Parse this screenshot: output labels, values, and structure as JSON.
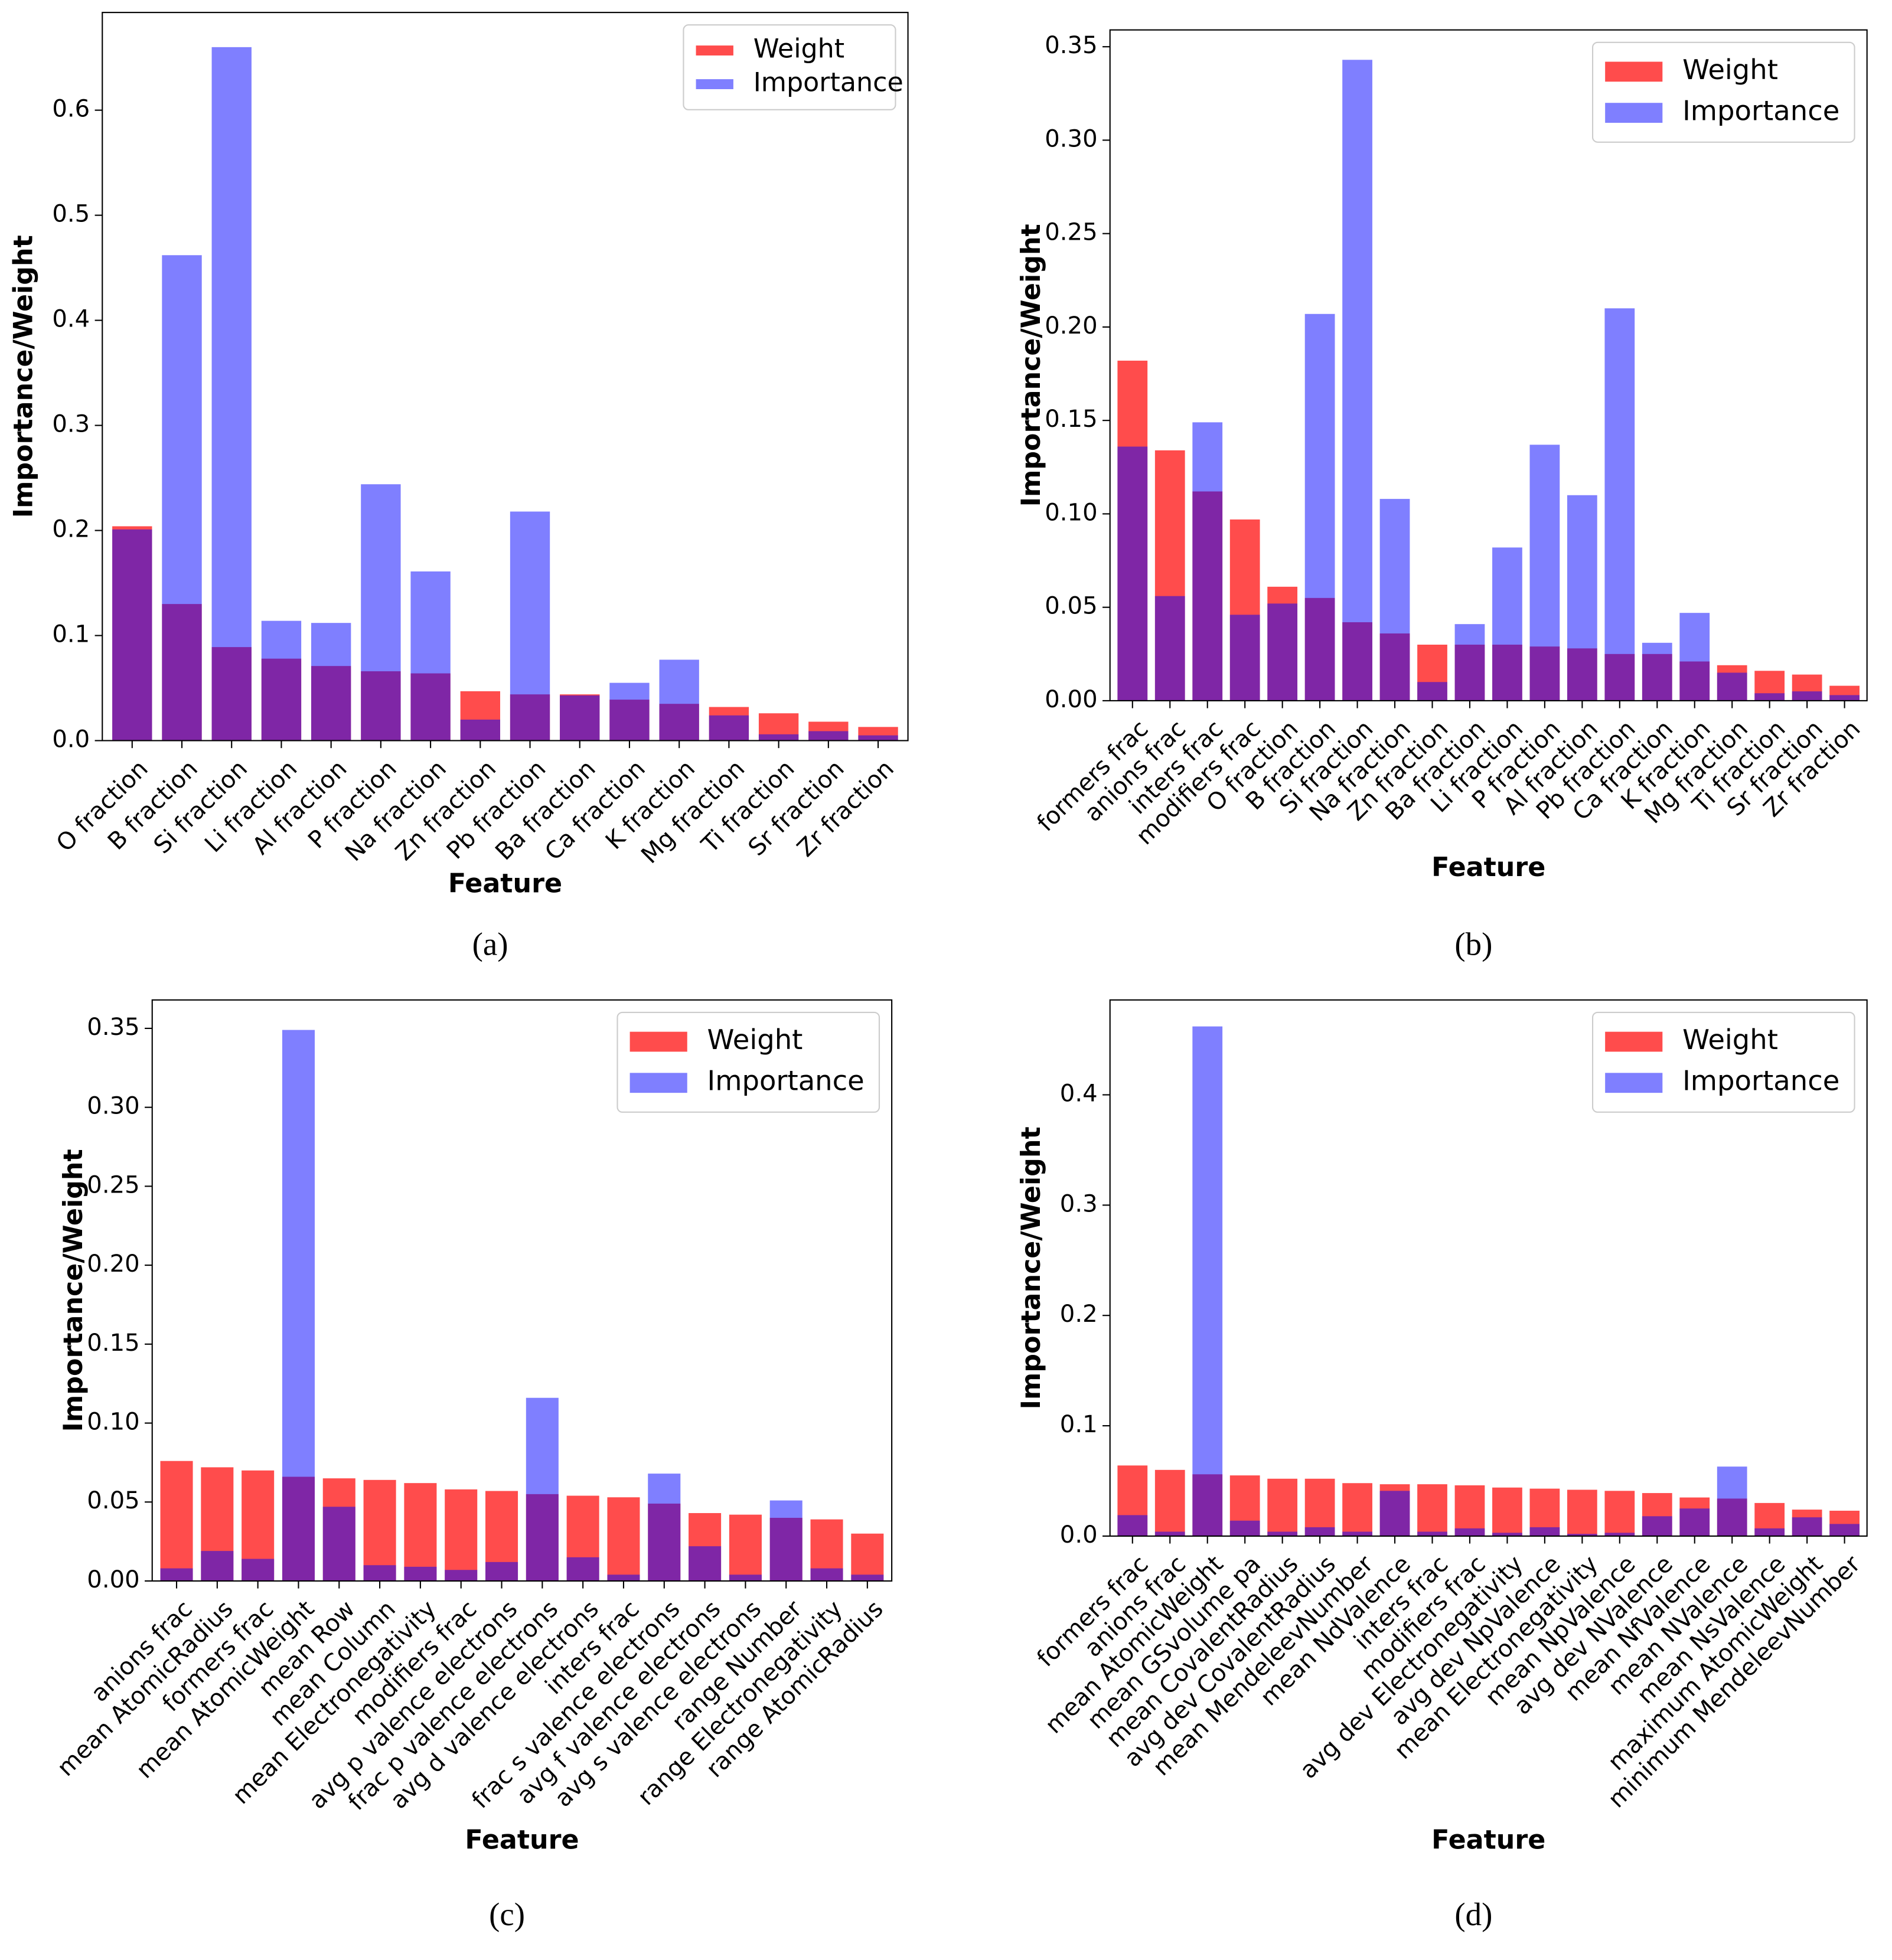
{
  "chart_data": [
    {
      "type": "bar",
      "caption": "(a)",
      "xlabel": "Feature",
      "ylabel": "Importance/Weight",
      "categories": [
        "O fraction",
        "B fraction",
        "Si fraction",
        "Li fraction",
        "Al fraction",
        "P fraction",
        "Na fraction",
        "Zn fraction",
        "Pb fraction",
        "Ba fraction",
        "Ca fraction",
        "K fraction",
        "Mg fraction",
        "Ti fraction",
        "Sr fraction",
        "Zr fraction"
      ],
      "series": [
        {
          "name": "Weight",
          "color": "#ff0000",
          "alpha": 0.7,
          "values": [
            0.204,
            0.13,
            0.089,
            0.078,
            0.071,
            0.066,
            0.064,
            0.047,
            0.044,
            0.044,
            0.039,
            0.035,
            0.032,
            0.026,
            0.018,
            0.013
          ]
        },
        {
          "name": "Importance",
          "color": "#0000ff",
          "alpha": 0.5,
          "values": [
            0.201,
            0.462,
            0.66,
            0.114,
            0.112,
            0.244,
            0.161,
            0.02,
            0.218,
            0.043,
            0.055,
            0.077,
            0.024,
            0.006,
            0.009,
            0.005
          ]
        }
      ],
      "ylim": [
        0,
        0.693
      ],
      "yticks": [
        {
          "value": 0,
          "label": "0.0"
        },
        0.1,
        0.2,
        0.3,
        0.4,
        0.5,
        0.6
      ],
      "legend": "upper right",
      "legend_size": "small"
    },
    {
      "type": "bar",
      "caption": "(b)",
      "xlabel": "Feature",
      "ylabel": "Importance/Weight",
      "categories": [
        "formers frac",
        "anions frac",
        "inters frac",
        "modifiers frac",
        "O fraction",
        "B fraction",
        "Si fraction",
        "Na fraction",
        "Zn fraction",
        "Ba fraction",
        "Li fraction",
        "P fraction",
        "Al fraction",
        "Pb fraction",
        "Ca fraction",
        "K fraction",
        "Mg fraction",
        "Ti fraction",
        "Sr fraction",
        "Zr fraction"
      ],
      "series": [
        {
          "name": "Weight",
          "color": "#ff0000",
          "alpha": 0.7,
          "values": [
            0.182,
            0.134,
            0.112,
            0.097,
            0.061,
            0.055,
            0.042,
            0.036,
            0.03,
            0.03,
            0.03,
            0.029,
            0.028,
            0.025,
            0.025,
            0.021,
            0.019,
            0.016,
            0.014,
            0.008
          ]
        },
        {
          "name": "Importance",
          "color": "#0000ff",
          "alpha": 0.5,
          "values": [
            0.136,
            0.056,
            0.149,
            0.046,
            0.052,
            0.207,
            0.343,
            0.108,
            0.01,
            0.041,
            0.082,
            0.137,
            0.11,
            0.21,
            0.031,
            0.047,
            0.015,
            0.004,
            0.005,
            0.003
          ]
        }
      ],
      "ylim": [
        0,
        0.359
      ],
      "yticks": [
        {
          "value": 0,
          "label": "0.00"
        },
        0.05,
        {
          "value": 0.1,
          "label": "0.10"
        },
        0.15,
        {
          "value": 0.2,
          "label": "0.20"
        },
        0.25,
        {
          "value": 0.3,
          "label": "0.30"
        },
        0.35
      ],
      "legend": "upper right",
      "legend_size": "large"
    },
    {
      "type": "bar",
      "caption": "(c)",
      "xlabel": "Feature",
      "ylabel": "Importance/Weight",
      "categories": [
        "anions frac",
        "mean AtomicRadius",
        "formers frac",
        "mean AtomicWeight",
        "mean Row",
        "mean Column",
        "mean Electronegativity",
        "modifiers frac",
        "avg p valence electrons",
        "frac p valence electrons",
        "avg d valence electrons",
        "inters frac",
        "frac s valence electrons",
        "avg f valence electrons",
        "avg s valence electrons",
        "range Number",
        "range Electronegativity",
        "range AtomicRadius"
      ],
      "series": [
        {
          "name": "Weight",
          "color": "#ff0000",
          "alpha": 0.7,
          "values": [
            0.076,
            0.072,
            0.07,
            0.066,
            0.065,
            0.064,
            0.062,
            0.058,
            0.057,
            0.055,
            0.054,
            0.053,
            0.049,
            0.043,
            0.042,
            0.04,
            0.039,
            0.03
          ]
        },
        {
          "name": "Importance",
          "color": "#0000ff",
          "alpha": 0.5,
          "values": [
            0.008,
            0.019,
            0.014,
            0.349,
            0.047,
            0.01,
            0.009,
            0.007,
            0.012,
            0.116,
            0.015,
            0.004,
            0.068,
            0.022,
            0.004,
            0.051,
            0.008,
            0.004
          ]
        }
      ],
      "ylim": [
        0,
        0.368
      ],
      "yticks": [
        {
          "value": 0,
          "label": "0.00"
        },
        0.05,
        {
          "value": 0.1,
          "label": "0.10"
        },
        0.15,
        {
          "value": 0.2,
          "label": "0.20"
        },
        0.25,
        {
          "value": 0.3,
          "label": "0.30"
        },
        0.35
      ],
      "legend": "upper right",
      "legend_size": "large"
    },
    {
      "type": "bar",
      "caption": "(d)",
      "xlabel": "Feature",
      "ylabel": "Importance/Weight",
      "categories": [
        "formers frac",
        "anions frac",
        "mean AtomicWeight",
        "mean GSvolume pa",
        "mean CovalentRadius",
        "avg dev CovalentRadius",
        "mean MendeleevNumber",
        "mean NdValence",
        "inters frac",
        "modifiers frac",
        "avg dev Electronegativity",
        "avg dev NpValence",
        "mean Electronegativity",
        "mean NpValence",
        "avg dev NValence",
        "mean NfValence",
        "mean NValence",
        "mean NsValence",
        "maximum AtomicWeight",
        "minimum MendeleevNumber"
      ],
      "series": [
        {
          "name": "Weight",
          "color": "#ff0000",
          "alpha": 0.7,
          "values": [
            0.064,
            0.06,
            0.056,
            0.055,
            0.052,
            0.052,
            0.048,
            0.047,
            0.047,
            0.046,
            0.044,
            0.043,
            0.042,
            0.041,
            0.039,
            0.035,
            0.034,
            0.03,
            0.024,
            0.023
          ]
        },
        {
          "name": "Importance",
          "color": "#0000ff",
          "alpha": 0.5,
          "values": [
            0.019,
            0.004,
            0.462,
            0.014,
            0.004,
            0.008,
            0.004,
            0.041,
            0.004,
            0.007,
            0.003,
            0.008,
            0.002,
            0.003,
            0.018,
            0.025,
            0.063,
            0.007,
            0.017,
            0.011
          ]
        }
      ],
      "ylim": [
        0,
        0.486
      ],
      "yticks": [
        {
          "value": 0,
          "label": "0.0"
        },
        0.1,
        0.2,
        0.3,
        0.4
      ],
      "legend": "upper right",
      "legend_size": "large"
    }
  ]
}
